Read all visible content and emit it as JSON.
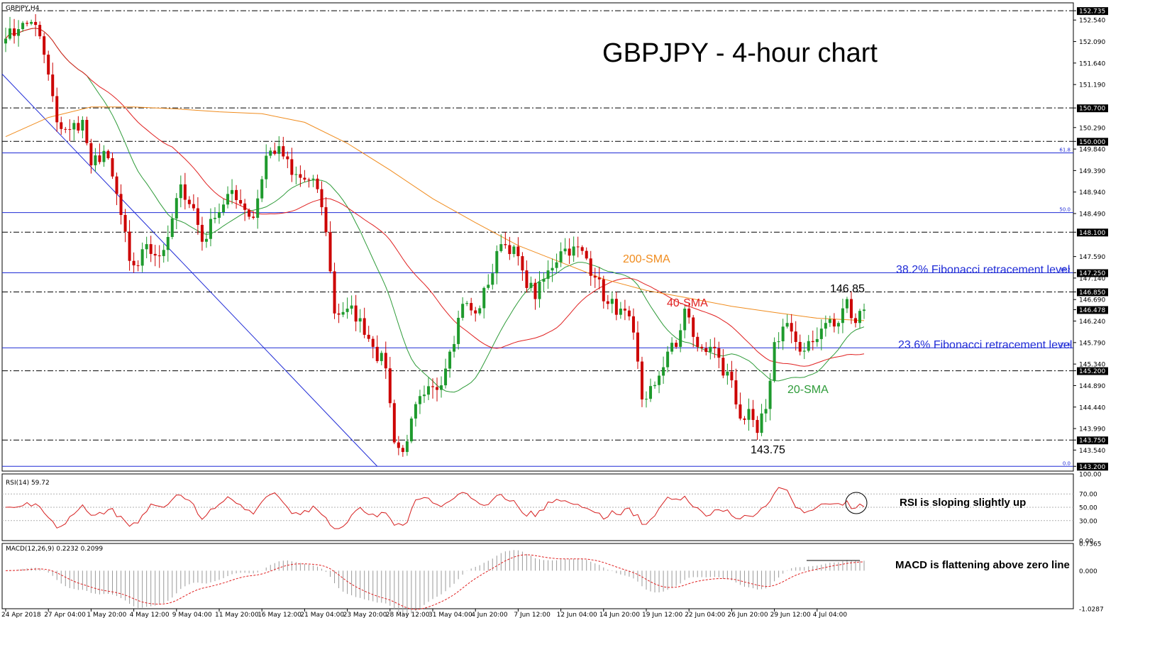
{
  "chart_data": {
    "type": "candlestick",
    "symbol_label": "GBPJPY,H4",
    "title": "GBPJPY - 4-hour chart",
    "price_ylim": [
      143.1,
      152.9
    ],
    "price_ticks": [
      "152.735",
      "152.540",
      "152.090",
      "151.640",
      "151.190",
      "150.700",
      "150.290",
      "150.000",
      "149.840",
      "149.390",
      "148.940",
      "148.490",
      "148.100",
      "147.590",
      "147.250",
      "147.140",
      "146.850",
      "146.690",
      "146.478",
      "146.240",
      "145.790",
      "145.340",
      "145.200",
      "144.890",
      "144.440",
      "143.990",
      "143.750",
      "143.540",
      "143.200"
    ],
    "boxed_price_ticks": [
      "152.735",
      "150.700",
      "150.000",
      "148.100",
      "147.250",
      "146.850",
      "146.478",
      "145.200",
      "143.750",
      "143.200"
    ],
    "horizontal_levels": [
      {
        "price": 150.7,
        "style": "dashdot",
        "color": "#000000"
      },
      {
        "price": 150.0,
        "style": "dashdot",
        "color": "#000000"
      },
      {
        "price": 148.1,
        "style": "dashdot",
        "color": "#000000"
      },
      {
        "price": 147.25,
        "style": "dashdot",
        "color": "#000000"
      },
      {
        "price": 146.85,
        "style": "dashdot",
        "color": "#000000"
      },
      {
        "price": 145.2,
        "style": "dashdot",
        "color": "#000000"
      },
      {
        "price": 143.75,
        "style": "dashdot",
        "color": "#000000"
      },
      {
        "price": 152.735,
        "style": "dashdot",
        "color": "#000000"
      }
    ],
    "fibonacci": {
      "color": "#1f2bd6",
      "levels": [
        {
          "label": "61.8",
          "price": 149.76
        },
        {
          "label": "50.0",
          "price": 148.51
        },
        {
          "label": "38.2",
          "price": 147.25
        },
        {
          "label": "23.6",
          "price": 145.68
        },
        {
          "label": "0.0",
          "price": 143.2
        }
      ]
    },
    "trendline": {
      "color": "#1f2bd6",
      "from": {
        "x_index": 0,
        "price": 151.41
      },
      "to": {
        "x_index": 87,
        "price": 143.2
      }
    },
    "x_tick_labels": [
      "24 Apr 2018",
      "27 Apr 04:00",
      "1 May 20:00",
      "4 May 12:00",
      "9 May 04:00",
      "11 May 20:00",
      "16 May 12:00",
      "21 May 04:00",
      "23 May 20:00",
      "28 May 12:00",
      "31 May 04:00",
      "4 Jun 20:00",
      "7 Jun 12:00",
      "12 Jun 04:00",
      "14 Jun 20:00",
      "19 Jun 12:00",
      "22 Jun 04:00",
      "26 Jun 20:00",
      "29 Jun 12:00",
      "4 Jul 04:00"
    ],
    "x_tick_positions": [
      0,
      10,
      20,
      30,
      40,
      50,
      60,
      70,
      80,
      90,
      100,
      110,
      120,
      130,
      140,
      150,
      160,
      170,
      180,
      190
    ],
    "bars_count": 202,
    "anchor_closes": [
      [
        0,
        152.15
      ],
      [
        3,
        152.35
      ],
      [
        6,
        152.5
      ],
      [
        8,
        152.2
      ],
      [
        10,
        151.4
      ],
      [
        12,
        150.4
      ],
      [
        15,
        150.25
      ],
      [
        18,
        150.45
      ],
      [
        20,
        149.5
      ],
      [
        23,
        149.8
      ],
      [
        26,
        148.9
      ],
      [
        29,
        147.5
      ],
      [
        31,
        147.4
      ],
      [
        33,
        147.85
      ],
      [
        36,
        147.6
      ],
      [
        38,
        148.0
      ],
      [
        41,
        149.1
      ],
      [
        44,
        148.6
      ],
      [
        46,
        147.9
      ],
      [
        49,
        148.4
      ],
      [
        52,
        148.9
      ],
      [
        55,
        148.7
      ],
      [
        58,
        148.4
      ],
      [
        61,
        149.7
      ],
      [
        64,
        149.9
      ],
      [
        67,
        149.3
      ],
      [
        70,
        149.2
      ],
      [
        73,
        149.0
      ],
      [
        75,
        148.1
      ],
      [
        77,
        146.4
      ],
      [
        80,
        146.5
      ],
      [
        83,
        146.3
      ],
      [
        86,
        145.7
      ],
      [
        89,
        145.25
      ],
      [
        91,
        143.7
      ],
      [
        93,
        143.5
      ],
      [
        95,
        144.2
      ],
      [
        98,
        144.7
      ],
      [
        101,
        144.8
      ],
      [
        104,
        145.6
      ],
      [
        107,
        146.6
      ],
      [
        110,
        146.4
      ],
      [
        113,
        147.0
      ],
      [
        116,
        147.85
      ],
      [
        119,
        147.8
      ],
      [
        121,
        147.3
      ],
      [
        124,
        146.7
      ],
      [
        127,
        147.3
      ],
      [
        130,
        147.7
      ],
      [
        133,
        147.8
      ],
      [
        136,
        147.55
      ],
      [
        138,
        147.15
      ],
      [
        141,
        146.6
      ],
      [
        144,
        146.5
      ],
      [
        147,
        146.0
      ],
      [
        149,
        144.6
      ],
      [
        152,
        144.9
      ],
      [
        155,
        145.6
      ],
      [
        157,
        145.7
      ],
      [
        159,
        146.5
      ],
      [
        162,
        145.7
      ],
      [
        165,
        145.7
      ],
      [
        168,
        145.1
      ],
      [
        170,
        145.0
      ],
      [
        172,
        144.2
      ],
      [
        174,
        144.4
      ],
      [
        176,
        143.9
      ],
      [
        178,
        144.4
      ],
      [
        180,
        145.8
      ],
      [
        183,
        146.2
      ],
      [
        186,
        145.6
      ],
      [
        189,
        145.8
      ],
      [
        192,
        146.2
      ],
      [
        195,
        146.2
      ],
      [
        197,
        146.7
      ],
      [
        199,
        146.2
      ],
      [
        201,
        146.48
      ]
    ],
    "sma": [
      {
        "name": "20-SMA",
        "period": 20,
        "color": "#2e9b39"
      },
      {
        "name": "40-SMA",
        "period": 40,
        "color": "#e02020"
      },
      {
        "name": "200-SMA",
        "color": "#f08c1e",
        "path": [
          [
            0,
            150.1
          ],
          [
            10,
            150.5
          ],
          [
            20,
            150.72
          ],
          [
            30,
            150.72
          ],
          [
            40,
            150.68
          ],
          [
            50,
            150.62
          ],
          [
            60,
            150.58
          ],
          [
            70,
            150.4
          ],
          [
            80,
            149.96
          ],
          [
            90,
            149.4
          ],
          [
            100,
            148.8
          ],
          [
            110,
            148.3
          ],
          [
            120,
            147.82
          ],
          [
            130,
            147.47
          ],
          [
            140,
            147.12
          ],
          [
            150,
            146.88
          ],
          [
            160,
            146.72
          ],
          [
            170,
            146.55
          ],
          [
            180,
            146.42
          ],
          [
            190,
            146.3
          ],
          [
            201,
            146.25
          ]
        ]
      }
    ],
    "annotations": [
      {
        "text": "200-SMA",
        "color": "#f08c1e"
      },
      {
        "text": "40-SMA",
        "color": "#e02020"
      },
      {
        "text": "20-SMA",
        "color": "#2e9b39"
      },
      {
        "text": "38.2% Fibonacci retracement level",
        "color": "#1f2bd6"
      },
      {
        "text": "23.6% Fibonacci retracement level",
        "color": "#1f2bd6"
      },
      {
        "text": "146.85",
        "color": "#000000"
      },
      {
        "text": "143.75",
        "color": "#000000"
      }
    ],
    "rsi": {
      "label": "RSI(14) 59.72",
      "ylim": [
        0,
        100
      ],
      "ticks": [
        "100.00",
        "70.00",
        "50.00",
        "30.00",
        "0.00"
      ],
      "levels": [
        70,
        50,
        30
      ],
      "color": "#d61f1f",
      "annotation": "RSI is sloping slightly up"
    },
    "macd": {
      "label": "MACD(12,26,9) 0.2232 0.2099",
      "ticks": [
        "0.7365",
        "0.000",
        "-1.0287"
      ],
      "ylim": [
        -1.0287,
        0.7365
      ],
      "signal_color": "#e02020",
      "histogram_color": "#9a9a9a",
      "annotation": "MACD is flattening above zero line"
    }
  }
}
